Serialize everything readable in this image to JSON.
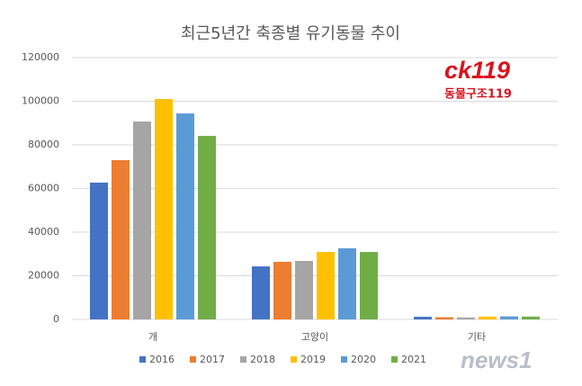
{
  "chart_data": {
    "type": "bar",
    "title": "최근5년간 축종별 유기동물 추이",
    "categories": [
      "개",
      "고양이",
      "기타"
    ],
    "series": [
      {
        "name": "2016",
        "color": "#4472c4",
        "values": [
          62700,
          24300,
          1200
        ]
      },
      {
        "name": "2017",
        "color": "#ed7d31",
        "values": [
          73000,
          26400,
          1000
        ]
      },
      {
        "name": "2018",
        "color": "#a5a5a5",
        "values": [
          90700,
          26800,
          900
        ]
      },
      {
        "name": "2019",
        "color": "#ffc000",
        "values": [
          101000,
          30900,
          1300
        ]
      },
      {
        "name": "2020",
        "color": "#5b9bd5",
        "values": [
          94400,
          32600,
          1400
        ]
      },
      {
        "name": "2021",
        "color": "#70ad47",
        "values": [
          84100,
          30900,
          1300
        ]
      }
    ],
    "ylim": [
      0,
      120000
    ],
    "yticks": [
      0,
      20000,
      40000,
      60000,
      80000,
      100000,
      120000
    ],
    "grid": true,
    "legend": "bottom",
    "logo": {
      "mark": "ck119",
      "text": "동물구조119"
    },
    "watermark": "news1"
  }
}
